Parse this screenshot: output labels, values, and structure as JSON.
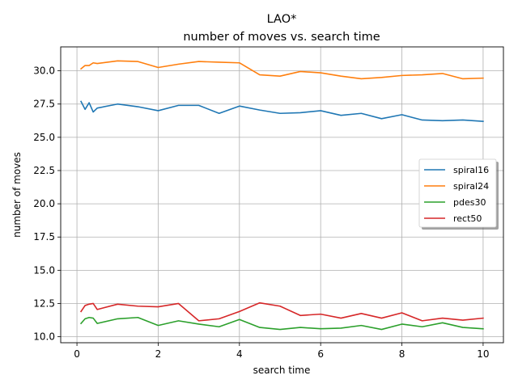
{
  "chart_data": {
    "type": "line",
    "title": "LAO*",
    "subtitle": "number of moves vs. search time",
    "xlabel": "search time",
    "ylabel": "number of moves",
    "xlim": [
      -0.4,
      10.5
    ],
    "ylim": [
      9.55,
      31.8
    ],
    "xticks": [
      0,
      2,
      4,
      6,
      8,
      10
    ],
    "yticks": [
      10.0,
      12.5,
      15.0,
      17.5,
      20.0,
      22.5,
      25.0,
      27.5,
      30.0
    ],
    "ytick_labels": [
      "10.0",
      "12.5",
      "15.0",
      "17.5",
      "20.0",
      "22.5",
      "25.0",
      "27.5",
      "30.0"
    ],
    "grid": true,
    "legend_position": "center-right",
    "series": [
      {
        "name": "spiral16",
        "color": "#1f77b4",
        "x": [
          0.1,
          0.2,
          0.3,
          0.4,
          0.5,
          1.0,
          1.5,
          2.0,
          2.5,
          3.0,
          3.5,
          4.0,
          4.5,
          5.0,
          5.5,
          6.0,
          6.5,
          7.0,
          7.5,
          8.0,
          8.5,
          9.0,
          9.5,
          10.0
        ],
        "y": [
          27.7,
          27.1,
          27.6,
          26.9,
          27.2,
          27.5,
          27.3,
          27.0,
          27.4,
          27.4,
          26.8,
          27.35,
          27.05,
          26.8,
          26.85,
          27.0,
          26.65,
          26.8,
          26.4,
          26.7,
          26.3,
          26.25,
          26.3,
          26.2
        ]
      },
      {
        "name": "spiral24",
        "color": "#ff7f0e",
        "x": [
          0.1,
          0.2,
          0.3,
          0.4,
          0.5,
          1.0,
          1.5,
          2.0,
          2.5,
          3.0,
          3.5,
          4.0,
          4.5,
          5.0,
          5.5,
          6.0,
          6.5,
          7.0,
          7.5,
          8.0,
          8.5,
          9.0,
          9.5,
          10.0
        ],
        "y": [
          30.15,
          30.4,
          30.4,
          30.6,
          30.55,
          30.75,
          30.7,
          30.25,
          30.5,
          30.7,
          30.65,
          30.6,
          29.7,
          29.6,
          29.95,
          29.85,
          29.6,
          29.4,
          29.5,
          29.65,
          29.7,
          29.8,
          29.4,
          29.45
        ]
      },
      {
        "name": "pdes30",
        "color": "#2ca02c",
        "x": [
          0.1,
          0.2,
          0.3,
          0.4,
          0.5,
          1.0,
          1.5,
          2.0,
          2.5,
          3.0,
          3.5,
          4.0,
          4.5,
          5.0,
          5.5,
          6.0,
          6.5,
          7.0,
          7.5,
          8.0,
          8.5,
          9.0,
          9.5,
          10.0
        ],
        "y": [
          11.0,
          11.35,
          11.45,
          11.4,
          11.0,
          11.35,
          11.45,
          10.85,
          11.2,
          10.95,
          10.75,
          11.3,
          10.7,
          10.55,
          10.7,
          10.6,
          10.65,
          10.85,
          10.55,
          10.95,
          10.75,
          11.05,
          10.7,
          10.6
        ]
      },
      {
        "name": "rect50",
        "color": "#d62728",
        "x": [
          0.1,
          0.2,
          0.3,
          0.4,
          0.5,
          1.0,
          1.5,
          2.0,
          2.5,
          3.0,
          3.5,
          4.0,
          4.5,
          5.0,
          5.5,
          6.0,
          6.5,
          7.0,
          7.5,
          8.0,
          8.5,
          9.0,
          9.5,
          10.0
        ],
        "y": [
          11.9,
          12.35,
          12.45,
          12.5,
          12.05,
          12.45,
          12.3,
          12.25,
          12.5,
          11.2,
          11.35,
          11.9,
          12.55,
          12.3,
          11.6,
          11.7,
          11.4,
          11.75,
          11.4,
          11.8,
          11.2,
          11.4,
          11.25,
          11.4
        ]
      }
    ]
  }
}
